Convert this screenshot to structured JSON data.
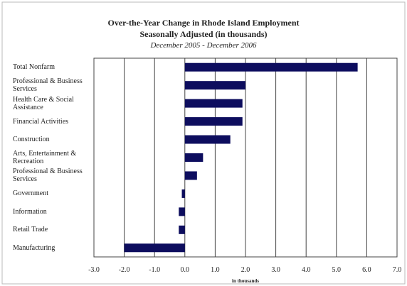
{
  "chart_data": {
    "type": "hbar",
    "title": "Over-the-Year Change in Rhode Island Employment",
    "subtitle": "Seasonally Adjusted (in thousands)",
    "date_range": "December 2005 - December 2006",
    "x_label": "in thousands",
    "categories": [
      "Total Nonfarm",
      "Professional & Business Services",
      "Health Care & Social Assistance",
      "Financial Activities",
      "Construction",
      "Arts, Entertainment & Recreation",
      "Professional & Business Services",
      "Government",
      "Information",
      "Retail Trade",
      "Manufacturing"
    ],
    "values": [
      5.7,
      2.0,
      1.9,
      1.9,
      1.5,
      0.6,
      0.4,
      -0.1,
      -0.2,
      -0.2,
      -2.0
    ],
    "color": "#0d0d5e",
    "xlim": [
      -3,
      7
    ],
    "xticks": [
      {
        "value": -3,
        "label": "-3.0"
      },
      {
        "value": -2,
        "label": "-2.0"
      },
      {
        "value": -1,
        "label": "-1.0"
      },
      {
        "value": 0,
        "label": "0.0"
      },
      {
        "value": 1,
        "label": "1.0"
      },
      {
        "value": 2,
        "label": "2.0"
      },
      {
        "value": 3,
        "label": "3.0"
      },
      {
        "value": 4,
        "label": "4.0"
      },
      {
        "value": 5,
        "label": "5.0"
      },
      {
        "value": 6,
        "label": "6.0"
      },
      {
        "value": 7,
        "label": "7.0"
      }
    ],
    "grid": true
  }
}
